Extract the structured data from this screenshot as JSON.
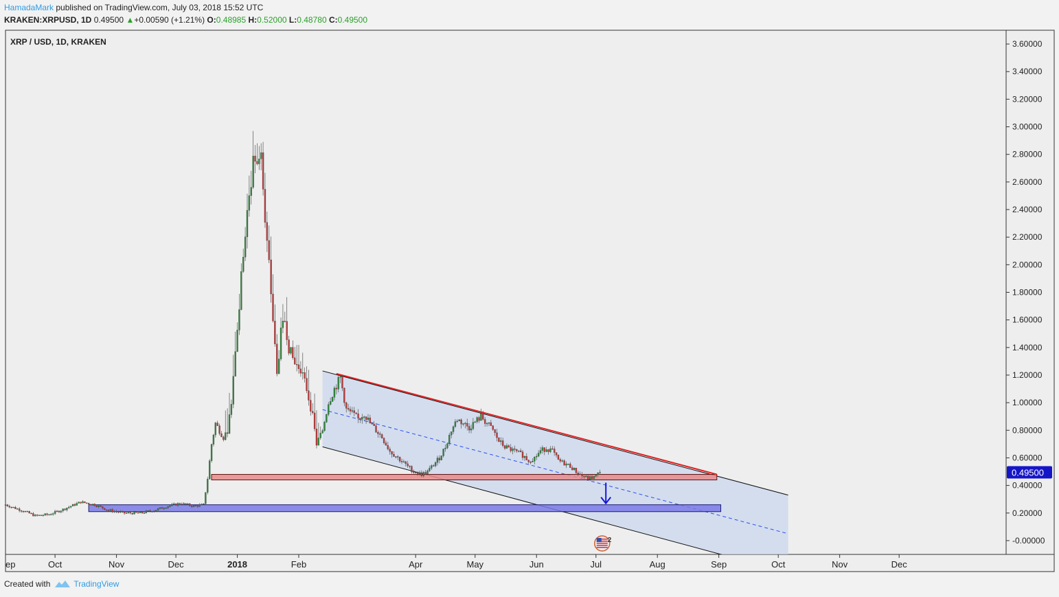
{
  "header": {
    "author": "HamadaMark",
    "published": "published on TradingView.com, July 03, 2018 15:52 UTC",
    "symbol": "KRAKEN:XRPUSD",
    "interval": ", 1D",
    "last": "0.49500",
    "change": "+0.00590 (+1.21%)",
    "o_label": "O:",
    "o": "0.48985",
    "h_label": "H:",
    "h": "0.52000",
    "l_label": "L:",
    "l": "0.48780",
    "c_label": "C:",
    "c": "0.49500"
  },
  "footer": {
    "created_with": "Created with",
    "brand": "TradingView"
  },
  "colors": {
    "up": "#2e8b3a",
    "down": "#c23b3b",
    "channel": "#c8d6ee",
    "support": "#e88a8a",
    "target": "#7a7ae6",
    "trend": "#e02020",
    "label_bg": "#1515c8"
  },
  "chart_data": {
    "type": "candlestick",
    "title": "XRP / USD, 1D, KRAKEN",
    "ylim": [
      -0.1,
      3.7
    ],
    "yticks": [
      3.6,
      3.4,
      3.2,
      3.0,
      2.8,
      2.6,
      2.4,
      2.2,
      2.0,
      1.8,
      1.6,
      1.4,
      1.2,
      1.0,
      0.8,
      0.6,
      0.4,
      0.2,
      0.0
    ],
    "ytick_labels": [
      "3.60000",
      "3.40000",
      "3.20000",
      "3.00000",
      "2.80000",
      "2.60000",
      "2.40000",
      "2.20000",
      "2.00000",
      "1.80000",
      "1.60000",
      "1.40000",
      "1.20000",
      "1.00000",
      "0.80000",
      "0.60000",
      "0.40000",
      "0.20000",
      "-0.00000"
    ],
    "x_day_range": [
      0,
      505
    ],
    "xticks": [
      {
        "label": "ep",
        "day": 0,
        "bold": false
      },
      {
        "label": "Oct",
        "day": 25,
        "bold": false
      },
      {
        "label": "Nov",
        "day": 56,
        "bold": false
      },
      {
        "label": "Dec",
        "day": 86,
        "bold": false
      },
      {
        "label": "2018",
        "day": 117,
        "bold": true
      },
      {
        "label": "Feb",
        "day": 148,
        "bold": false
      },
      {
        "label": "Apr",
        "day": 207,
        "bold": false
      },
      {
        "label": "May",
        "day": 237,
        "bold": false
      },
      {
        "label": "Jun",
        "day": 268,
        "bold": false
      },
      {
        "label": "Jul",
        "day": 298,
        "bold": false
      },
      {
        "label": "Aug",
        "day": 329,
        "bold": false
      },
      {
        "label": "Sep",
        "day": 360,
        "bold": false
      },
      {
        "label": "Oct",
        "day": 390,
        "bold": false
      },
      {
        "label": "Nov",
        "day": 421,
        "bold": false
      },
      {
        "label": "Dec",
        "day": 451,
        "bold": false
      }
    ],
    "price_keypoints": [
      [
        0,
        0.26
      ],
      [
        10,
        0.21
      ],
      [
        15,
        0.18
      ],
      [
        22,
        0.19
      ],
      [
        28,
        0.22
      ],
      [
        38,
        0.28
      ],
      [
        45,
        0.26
      ],
      [
        52,
        0.22
      ],
      [
        60,
        0.2
      ],
      [
        68,
        0.2
      ],
      [
        75,
        0.22
      ],
      [
        82,
        0.25
      ],
      [
        88,
        0.27
      ],
      [
        95,
        0.25
      ],
      [
        100,
        0.26
      ],
      [
        102,
        0.45
      ],
      [
        104,
        0.7
      ],
      [
        106,
        0.85
      ],
      [
        110,
        0.75
      ],
      [
        112,
        0.8
      ],
      [
        114,
        1.0
      ],
      [
        116,
        1.4
      ],
      [
        118,
        1.7
      ],
      [
        120,
        2.1
      ],
      [
        122,
        2.35
      ],
      [
        124,
        2.6
      ],
      [
        125,
        2.8
      ],
      [
        127,
        2.7
      ],
      [
        129,
        2.85
      ],
      [
        131,
        2.3
      ],
      [
        133,
        2.0
      ],
      [
        135,
        1.6
      ],
      [
        137,
        1.2
      ],
      [
        139,
        1.5
      ],
      [
        141,
        1.6
      ],
      [
        143,
        1.4
      ],
      [
        146,
        1.28
      ],
      [
        149,
        1.25
      ],
      [
        152,
        1.1
      ],
      [
        155,
        0.9
      ],
      [
        157,
        0.7
      ],
      [
        160,
        0.8
      ],
      [
        163,
        1.0
      ],
      [
        166,
        1.1
      ],
      [
        169,
        1.18
      ],
      [
        172,
        0.95
      ],
      [
        175,
        0.92
      ],
      [
        178,
        0.88
      ],
      [
        181,
        0.92
      ],
      [
        184,
        0.85
      ],
      [
        187,
        0.8
      ],
      [
        190,
        0.75
      ],
      [
        194,
        0.65
      ],
      [
        198,
        0.6
      ],
      [
        202,
        0.55
      ],
      [
        206,
        0.5
      ],
      [
        210,
        0.48
      ],
      [
        213,
        0.5
      ],
      [
        216,
        0.55
      ],
      [
        219,
        0.6
      ],
      [
        222,
        0.68
      ],
      [
        225,
        0.8
      ],
      [
        228,
        0.88
      ],
      [
        231,
        0.85
      ],
      [
        234,
        0.82
      ],
      [
        237,
        0.86
      ],
      [
        240,
        0.9
      ],
      [
        243,
        0.85
      ],
      [
        246,
        0.8
      ],
      [
        249,
        0.72
      ],
      [
        252,
        0.68
      ],
      [
        255,
        0.66
      ],
      [
        258,
        0.64
      ],
      [
        261,
        0.62
      ],
      [
        264,
        0.58
      ],
      [
        267,
        0.6
      ],
      [
        270,
        0.65
      ],
      [
        273,
        0.67
      ],
      [
        276,
        0.65
      ],
      [
        279,
        0.58
      ],
      [
        282,
        0.56
      ],
      [
        285,
        0.54
      ],
      [
        288,
        0.5
      ],
      [
        291,
        0.47
      ],
      [
        294,
        0.45
      ],
      [
        297,
        0.46
      ],
      [
        300,
        0.495
      ]
    ],
    "channel": {
      "upper": [
        [
          160,
          1.23
        ],
        [
          395,
          0.33
        ]
      ],
      "lower": [
        [
          160,
          0.68
        ],
        [
          374,
          -0.15
        ]
      ],
      "mid": [
        [
          160,
          0.95
        ],
        [
          395,
          0.05
        ]
      ],
      "right_edge_day": 395
    },
    "trendline": [
      [
        167,
        1.21
      ],
      [
        359,
        0.48
      ]
    ],
    "support_zone": {
      "x": [
        104,
        359
      ],
      "y": [
        0.44,
        0.48
      ]
    },
    "target_zone": {
      "x": [
        42,
        361
      ],
      "y": [
        0.21,
        0.26
      ]
    },
    "arrow": {
      "day": 303,
      "from": 0.42,
      "to": 0.27
    },
    "last_price": {
      "value": 0.495,
      "label": "0.49500"
    },
    "marker_count": "2"
  }
}
